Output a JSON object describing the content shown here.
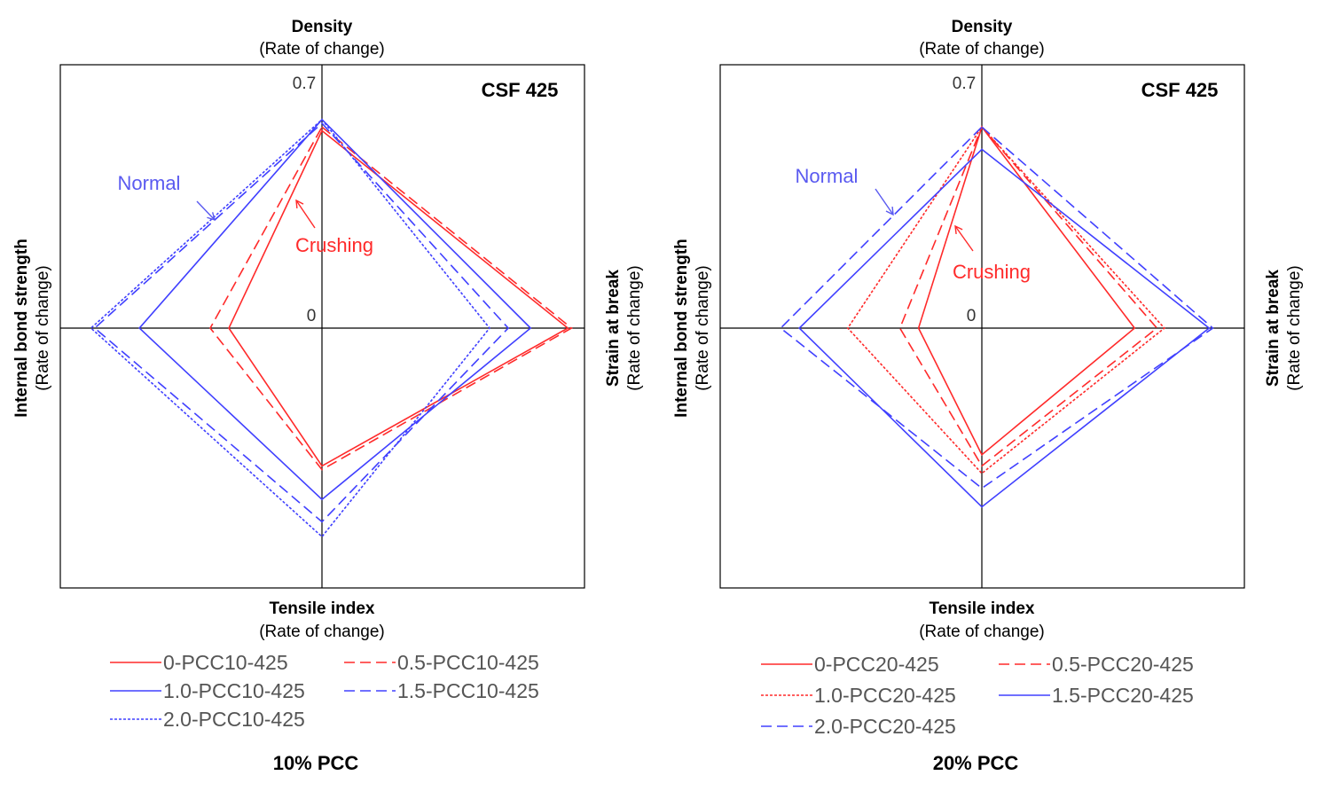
{
  "colors": {
    "red": "#ff2a2a",
    "blue": "#4040ff",
    "axis": "#000000",
    "note_blue": "#5a5af0",
    "legend_text": "#555555"
  },
  "chart_data": [
    {
      "type": "radar",
      "panel_title": "10% PCC",
      "annotation": "CSF 425",
      "axes": {
        "top": {
          "title": "Density",
          "subtitle": "(Rate of change)"
        },
        "right": {
          "title": "Strain at break",
          "subtitle": "(Rate of change)"
        },
        "bottom": {
          "title": "Tensile index",
          "subtitle": "(Rate of change)"
        },
        "left": {
          "title": "Internal bond strength",
          "subtitle": "(Rate of change)"
        }
      },
      "axis_order": [
        "Density",
        "Strain at break",
        "Tensile index",
        "Internal bond strength"
      ],
      "range": [
        0,
        0.7
      ],
      "tick_labels": {
        "max": "0.7",
        "zero": "0"
      },
      "notes": {
        "normal": "Normal",
        "crushing": "Crushing"
      },
      "series": [
        {
          "name": "0-PCC10-425",
          "color": "red",
          "dash": "solid",
          "values": [
            0.53,
            0.66,
            0.37,
            0.25
          ]
        },
        {
          "name": "0.5-PCC10-425",
          "color": "red",
          "dash": "dashed",
          "values": [
            0.54,
            0.67,
            0.38,
            0.3
          ]
        },
        {
          "name": "1.0-PCC10-425",
          "color": "blue",
          "dash": "solid",
          "values": [
            0.56,
            0.56,
            0.46,
            0.49
          ]
        },
        {
          "name": "1.5-PCC10-425",
          "color": "blue",
          "dash": "dashed",
          "values": [
            0.55,
            0.5,
            0.52,
            0.61
          ]
        },
        {
          "name": "2.0-PCC10-425",
          "color": "blue",
          "dash": "dotted",
          "values": [
            0.56,
            0.45,
            0.56,
            0.62
          ]
        }
      ]
    },
    {
      "type": "radar",
      "panel_title": "20% PCC",
      "annotation": "CSF 425",
      "axes": {
        "top": {
          "title": "Density",
          "subtitle": "(Rate of change)"
        },
        "right": {
          "title": "Strain at break",
          "subtitle": "(Rate of change)"
        },
        "bottom": {
          "title": "Tensile index",
          "subtitle": "(Rate of change)"
        },
        "left": {
          "title": "Internal bond strength",
          "subtitle": "(Rate of change)"
        }
      },
      "axis_order": [
        "Density",
        "Strain at break",
        "Tensile index",
        "Internal bond strength"
      ],
      "range": [
        0,
        0.7
      ],
      "tick_labels": {
        "max": "0.7",
        "zero": "0"
      },
      "notes": {
        "normal": "Normal",
        "crushing": "Crushing"
      },
      "series": [
        {
          "name": "0-PCC20-425",
          "color": "red",
          "dash": "solid",
          "values": [
            0.54,
            0.41,
            0.34,
            0.17
          ]
        },
        {
          "name": "0.5-PCC20-425",
          "color": "red",
          "dash": "dashed",
          "values": [
            0.54,
            0.47,
            0.37,
            0.22
          ]
        },
        {
          "name": "1.0-PCC20-425",
          "color": "red",
          "dash": "dotted",
          "values": [
            0.54,
            0.49,
            0.39,
            0.36
          ]
        },
        {
          "name": "1.5-PCC20-425",
          "color": "blue",
          "dash": "solid",
          "values": [
            0.48,
            0.61,
            0.48,
            0.49
          ]
        },
        {
          "name": "2.0-PCC20-425",
          "color": "blue",
          "dash": "dashed",
          "values": [
            0.54,
            0.62,
            0.43,
            0.54
          ]
        }
      ]
    }
  ]
}
